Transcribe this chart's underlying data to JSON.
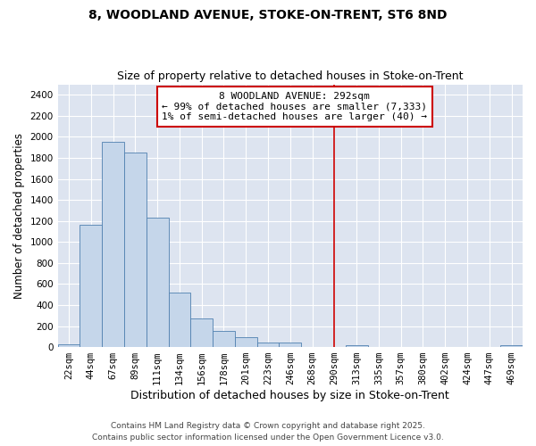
{
  "title1": "8, WOODLAND AVENUE, STOKE-ON-TRENT, ST6 8ND",
  "title2": "Size of property relative to detached houses in Stoke-on-Trent",
  "xlabel": "Distribution of detached houses by size in Stoke-on-Trent",
  "ylabel": "Number of detached properties",
  "categories": [
    "22sqm",
    "44sqm",
    "67sqm",
    "89sqm",
    "111sqm",
    "134sqm",
    "156sqm",
    "178sqm",
    "201sqm",
    "223sqm",
    "246sqm",
    "268sqm",
    "290sqm",
    "313sqm",
    "335sqm",
    "357sqm",
    "380sqm",
    "402sqm",
    "424sqm",
    "447sqm",
    "469sqm"
  ],
  "values": [
    25,
    1160,
    1950,
    1850,
    1230,
    520,
    270,
    150,
    90,
    40,
    40,
    0,
    0,
    20,
    0,
    0,
    0,
    0,
    0,
    0,
    20
  ],
  "bar_color": "#c5d6ea",
  "bar_edge_color": "#5080b0",
  "background_color": "#dde4f0",
  "grid_color": "#ffffff",
  "red_line_index": 12,
  "red_line_color": "#cc0000",
  "ylim": [
    0,
    2500
  ],
  "yticks": [
    0,
    200,
    400,
    600,
    800,
    1000,
    1200,
    1400,
    1600,
    1800,
    2000,
    2200,
    2400
  ],
  "annotation_text_line1": "8 WOODLAND AVENUE: 292sqm",
  "annotation_text_line2": "← 99% of detached houses are smaller (7,333)",
  "annotation_text_line3": "1% of semi-detached houses are larger (40) →",
  "annotation_box_color": "#ffffff",
  "annotation_box_edge_color": "#cc0000",
  "footer1": "Contains HM Land Registry data © Crown copyright and database right 2025.",
  "footer2": "Contains public sector information licensed under the Open Government Licence v3.0.",
  "title1_fontsize": 10,
  "title2_fontsize": 9,
  "xlabel_fontsize": 9,
  "ylabel_fontsize": 8.5,
  "tick_fontsize": 7.5,
  "annotation_fontsize": 8,
  "footer_fontsize": 6.5
}
